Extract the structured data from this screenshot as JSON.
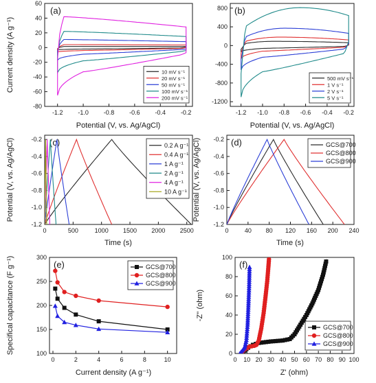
{
  "chart_data": [
    {
      "panel": "(a)",
      "type": "line",
      "subtype": "cyclic-voltammetry-loops",
      "xlabel": "Potential (V, vs. Ag/AgCl)",
      "ylabel": "Current density (A g⁻¹)",
      "xlim": [
        -1.3,
        -0.15
      ],
      "ylim": [
        -80,
        60
      ],
      "xticks": [
        -1.2,
        -1.0,
        -0.8,
        -0.6,
        -0.4,
        -0.2
      ],
      "yticks": [
        -80,
        -60,
        -40,
        -20,
        0,
        20,
        40,
        60
      ],
      "xtick_labels": [
        "-1.2",
        "-1.0",
        "-0.8",
        "-0.6",
        "-0.4",
        "-0.2"
      ],
      "ytick_labels": [
        "-80",
        "-60",
        "-40",
        "-20",
        "0",
        "20",
        "40",
        "60"
      ],
      "legend": "bottom-right",
      "series": [
        {
          "name": "10 mV s⁻¹",
          "color": "#2a2a2a",
          "upper": {
            "start": -1.5,
            "plateau": 1.5,
            "end": 1.5
          },
          "lower": {
            "start": -3,
            "plateau": -2,
            "end": 0.5
          }
        },
        {
          "name": "20 mV s⁻¹",
          "color": "#e03030",
          "upper": {
            "start": -2,
            "plateau": 4,
            "end": 3.5
          },
          "lower": {
            "start": -6,
            "plateau": -4,
            "end": 0
          }
        },
        {
          "name": "50 mV s⁻¹",
          "color": "#2b3fd6",
          "upper": {
            "start": -5,
            "plateau": 11,
            "end": 8
          },
          "lower": {
            "start": -17,
            "plateau": -9,
            "end": -2
          }
        },
        {
          "name": "100 mV s⁻¹",
          "color": "#1f8a8a",
          "upper": {
            "start": -9,
            "plateau": 22,
            "end": 15
          },
          "lower": {
            "start": -34,
            "plateau": -18,
            "end": -4
          }
        },
        {
          "name": "200 mV s⁻¹",
          "color": "#e020e0",
          "upper": {
            "start": -15,
            "plateau": 42,
            "end": 28
          },
          "lower": {
            "start": -65,
            "plateau": -33,
            "end": -7
          }
        }
      ]
    },
    {
      "panel": "(b)",
      "type": "line",
      "subtype": "cyclic-voltammetry-loops",
      "xlabel": "Potential (V, vs. Ag/AgCl)",
      "ylabel": "",
      "xlim": [
        -1.3,
        -0.15
      ],
      "ylim": [
        -1300,
        900
      ],
      "xticks": [
        -1.2,
        -1.0,
        -0.8,
        -0.6,
        -0.4,
        -0.2
      ],
      "yticks": [
        -1200,
        -800,
        -400,
        0,
        400,
        800
      ],
      "xtick_labels": [
        "-1.2",
        "-1.0",
        "-0.8",
        "-0.6",
        "-0.4",
        "-0.2"
      ],
      "ytick_labels": [
        "-1200",
        "-800",
        "-400",
        "0",
        "400",
        "800"
      ],
      "legend": "bottom-right",
      "series": [
        {
          "name": "500 mV s⁻¹",
          "color": "#2a2a2a",
          "upper": {
            "start": -80,
            "peak_x": -0.9,
            "peak": 90,
            "end": 60
          },
          "lower": {
            "start": -130,
            "plateau": -60,
            "end": 10
          }
        },
        {
          "name": "1 V s⁻¹",
          "color": "#e03030",
          "upper": {
            "start": -160,
            "peak_x": -0.85,
            "peak": 180,
            "end": 120
          },
          "lower": {
            "start": -280,
            "plateau": -120,
            "end": 20
          }
        },
        {
          "name": "2 V s⁻¹",
          "color": "#2b3fd6",
          "upper": {
            "start": -300,
            "peak_x": -0.8,
            "peak": 370,
            "end": 260
          },
          "lower": {
            "start": -520,
            "plateau": -250,
            "end": 40
          }
        },
        {
          "name": "5 V s⁻¹",
          "color": "#1f8a8a",
          "upper": {
            "start": -600,
            "peak_x": -0.65,
            "peak": 810,
            "end": 640
          },
          "lower": {
            "start": -1100,
            "plateau": -560,
            "end": 80
          }
        }
      ]
    },
    {
      "panel": "(c)",
      "type": "line",
      "subtype": "galvanostatic-charge-discharge",
      "xlabel": "Time (s)",
      "ylabel": "Potential (V, vs. Ag/AgCl)",
      "xlim": [
        0,
        2600
      ],
      "ylim": [
        -1.2,
        -0.15
      ],
      "xticks": [
        0,
        500,
        1000,
        1500,
        2000,
        2500
      ],
      "yticks": [
        -1.2,
        -1.0,
        -0.8,
        -0.6,
        -0.4,
        -0.2
      ],
      "xtick_labels": [
        "0",
        "500",
        "1000",
        "1500",
        "2000",
        "2500"
      ],
      "ytick_labels": [
        "-1.2",
        "-1.0",
        "-0.8",
        "-0.6",
        "-0.4",
        "-0.2"
      ],
      "legend": "top-right",
      "series": [
        {
          "name": "0.2 A g⁻¹",
          "color": "#2a2a2a",
          "charge_time": 1180,
          "total_time": 2580
        },
        {
          "name": "0.4 A g⁻¹",
          "color": "#e03030",
          "charge_time": 560,
          "total_time": 1180
        },
        {
          "name": "1 A g⁻¹",
          "color": "#2b3fd6",
          "charge_time": 215,
          "total_time": 430
        },
        {
          "name": "2 A g⁻¹",
          "color": "#1f8a8a",
          "charge_time": 100,
          "total_time": 200
        },
        {
          "name": "4 A g⁻¹",
          "color": "#e020e0",
          "charge_time": 45,
          "total_time": 90
        },
        {
          "name": "10 A g⁻¹",
          "color": "#a8a820",
          "charge_time": 18,
          "total_time": 36
        }
      ]
    },
    {
      "panel": "(d)",
      "type": "line",
      "subtype": "galvanostatic-charge-discharge",
      "xlabel": "Time (s)",
      "ylabel": "Potential (V, vs. Ag/AgCl)",
      "xlim": [
        0,
        240
      ],
      "ylim": [
        -1.2,
        -0.15
      ],
      "xticks": [
        0,
        40,
        80,
        120,
        160,
        200,
        240
      ],
      "yticks": [
        -1.2,
        -1.0,
        -0.8,
        -0.6,
        -0.4,
        -0.2
      ],
      "xtick_labels": [
        "0",
        "40",
        "80",
        "120",
        "160",
        "200",
        "240"
      ],
      "ytick_labels": [
        "-1.2",
        "-1.0",
        "-0.8",
        "-0.6",
        "-0.4",
        "-0.2"
      ],
      "legend": "top-right",
      "series": [
        {
          "name": "GCS@700",
          "color": "#2a2a2a",
          "charge_time": 88,
          "total_time": 182
        },
        {
          "name": "GCS@800",
          "color": "#e03030",
          "charge_time": 108,
          "total_time": 222
        },
        {
          "name": "GCS@900",
          "color": "#2b3fd6",
          "charge_time": 76,
          "total_time": 155
        }
      ]
    },
    {
      "panel": "(e)",
      "type": "line",
      "subtype": "line-with-markers",
      "xlabel": "Current density (A g⁻¹)",
      "ylabel": "Specifical capacitance (F g⁻¹)",
      "xlim": [
        -0.3,
        10.8
      ],
      "ylim": [
        100,
        300
      ],
      "xticks": [
        0,
        2,
        4,
        6,
        8,
        10
      ],
      "yticks": [
        100,
        150,
        200,
        250,
        300
      ],
      "xtick_labels": [
        "0",
        "2",
        "4",
        "6",
        "8",
        "10"
      ],
      "ytick_labels": [
        "100",
        "150",
        "200",
        "250",
        "300"
      ],
      "legend": "top-right",
      "x": [
        0.2,
        0.4,
        1,
        2,
        4,
        10
      ],
      "series": [
        {
          "name": "GCS@700",
          "color": "#111111",
          "marker": "square",
          "values": [
            235,
            214,
            195,
            181,
            167,
            150
          ]
        },
        {
          "name": "GCS@800",
          "color": "#e02020",
          "marker": "circle",
          "values": [
            272,
            248,
            228,
            220,
            210,
            197
          ]
        },
        {
          "name": "GCS@900",
          "color": "#2020e0",
          "marker": "triangle",
          "values": [
            199,
            178,
            165,
            159,
            151,
            144
          ]
        }
      ]
    },
    {
      "panel": "(f)",
      "type": "scatter",
      "subtype": "nyquist-plot",
      "xlabel": "Z' (ohm)",
      "ylabel": "-Z'' (ohm)",
      "xlim": [
        0,
        100
      ],
      "ylim": [
        0,
        100
      ],
      "xticks": [
        0,
        10,
        20,
        30,
        40,
        50,
        60,
        70,
        80,
        90,
        100
      ],
      "yticks": [
        0,
        20,
        40,
        60,
        80,
        100
      ],
      "xtick_labels": [
        "0",
        "10",
        "20",
        "30",
        "40",
        "50",
        "60",
        "70",
        "80",
        "90",
        "100"
      ],
      "ytick_labels": [
        "0",
        "20",
        "40",
        "60",
        "80",
        "100"
      ],
      "legend": "bottom-right",
      "series": [
        {
          "name": "GCS@700",
          "color": "#111111",
          "marker": "square",
          "path": [
            [
              6,
              0
            ],
            [
              8,
              3
            ],
            [
              11,
              6
            ],
            [
              15,
              9
            ],
            [
              20,
              11
            ],
            [
              30,
              12.5
            ],
            [
              40,
              13.5
            ],
            [
              46,
              15
            ],
            [
              50,
              20
            ],
            [
              55,
              30
            ],
            [
              60,
              40
            ],
            [
              65,
              52
            ],
            [
              70,
              66
            ],
            [
              74,
              82
            ],
            [
              77,
              98
            ]
          ]
        },
        {
          "name": "GCS@800",
          "color": "#e02020",
          "marker": "circle",
          "path": [
            [
              5,
              0
            ],
            [
              8,
              4
            ],
            [
              12,
              7
            ],
            [
              16,
              8
            ],
            [
              18,
              9
            ],
            [
              20,
              14
            ],
            [
              22,
              26
            ],
            [
              24,
              42
            ],
            [
              25.5,
              58
            ],
            [
              27,
              75
            ],
            [
              28,
              90
            ],
            [
              28.6,
              100
            ]
          ]
        },
        {
          "name": "GCS@900",
          "color": "#2020e0",
          "marker": "triangle",
          "path": [
            [
              4,
              0
            ],
            [
              6,
              3
            ],
            [
              8,
              6
            ],
            [
              9.5,
              14
            ],
            [
              10.5,
              30
            ],
            [
              11.2,
              50
            ],
            [
              11.8,
              70
            ],
            [
              12.2,
              92
            ]
          ]
        }
      ]
    }
  ]
}
